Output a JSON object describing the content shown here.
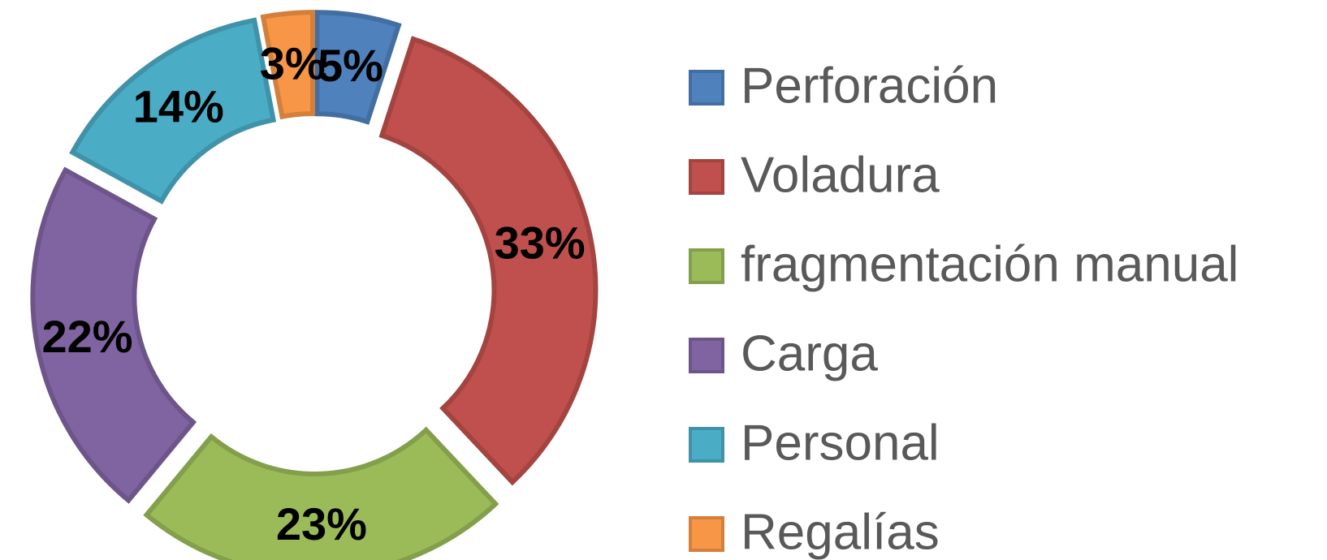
{
  "chart_data": {
    "type": "pie",
    "categories": [
      "Perforación",
      "Voladura",
      "fragmentación manual",
      "Carga",
      "Personal",
      "Regalías"
    ],
    "values": [
      5,
      33,
      23,
      22,
      14,
      3
    ],
    "value_labels": [
      "5%",
      "33%",
      "23%",
      "22%",
      "14%",
      "3%"
    ],
    "colors": [
      "#4f81bd",
      "#c0504d",
      "#9bbb59",
      "#8064a2",
      "#4bacc6",
      "#f79646"
    ],
    "donut": true,
    "exploded": true,
    "legend": "right"
  }
}
